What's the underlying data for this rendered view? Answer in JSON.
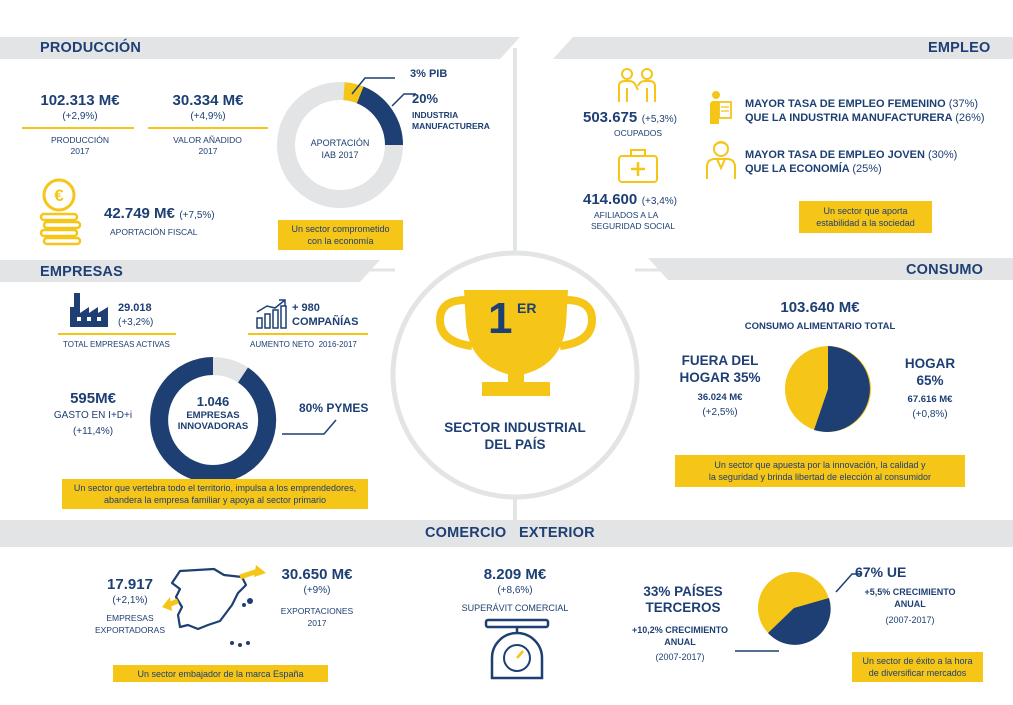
{
  "colors": {
    "navy": "#1d3f73",
    "yellow": "#f5c518",
    "grey": "#e3e4e6"
  },
  "produccion": {
    "title": "PRODUCCIÓN",
    "prod_value": "102.313 M€",
    "prod_change": "(+2,9%)",
    "prod_label": "PRODUCCIÓN",
    "prod_year": "2017",
    "va_value": "30.334 M€",
    "va_change": "(+4,9%)",
    "va_label": "VALOR AÑADIDO",
    "va_year": "2017",
    "pib": "3% PIB",
    "ind_pct": "20%",
    "ind_label1": "INDUSTRIA",
    "ind_label2": "MANUFACTURERA",
    "donut_label1": "APORTACIÓN",
    "donut_label2": "IAB 2017",
    "fiscal_value": "42.749 M€",
    "fiscal_change": "(+7,5%)",
    "fiscal_label": "APORTACIÓN FISCAL",
    "box1": "Un sector comprometido",
    "box2": "con la economía",
    "coin_icon": "euro-coins-icon"
  },
  "empleo": {
    "title": "EMPLEO",
    "ocupados_value": "503.675",
    "ocupados_change": "(+5,3%)",
    "ocupados_label": "OCUPADOS",
    "afiliados_value": "414.600",
    "afiliados_change": "(+3,4%)",
    "afiliados_label1": "AFILIADOS A LA",
    "afiliados_label2": "SEGURIDAD SOCIAL",
    "fem_line1": "MAYOR TASA DE EMPLEO FEMENINO",
    "fem_pct1": "(37%)",
    "fem_line2": "QUE LA INDUSTRIA MANUFACTURERA",
    "fem_pct2": "(26%)",
    "joven_line1": "MAYOR TASA DE EMPLEO JOVEN",
    "joven_pct1": "(30%)",
    "joven_line2": "QUE LA ECONOMÍA",
    "joven_pct2": "(25%)",
    "box1": "Un sector que aporta",
    "box2": "estabilidad a la sociedad"
  },
  "empresas": {
    "title": "EMPRESAS",
    "activas_value": "29.018",
    "activas_change": "(+3,2%)",
    "activas_label": "TOTAL EMPRESAS ACTIVAS",
    "comp_value": "+ 980",
    "comp_label": "COMPAÑÍAS",
    "comp_sub": "AUMENTO NETO  2016-2017",
    "gasto_value": "595M€",
    "gasto_label": "GASTO EN I+D+i",
    "gasto_change": "(+11,4%)",
    "innov_value": "1.046",
    "innov_label1": "EMPRESAS",
    "innov_label2": "INNOVADORAS",
    "pymes": "80% PYMES",
    "box1": "Un sector que vertebra todo el territorio, impulsa a los emprendedores,",
    "box2": "abandera la empresa familiar y apoya al sector primario"
  },
  "centro": {
    "rank": "1",
    "rank_sup": "ER",
    "label1": "SECTOR INDUSTRIAL",
    "label2": "DEL PAÍS"
  },
  "consumo": {
    "title": "CONSUMO",
    "total_value": "103.640 M€",
    "total_label": "CONSUMO ALIMENTARIO TOTAL",
    "fuera_label1": "FUERA DEL",
    "fuera_label2": "HOGAR 35%",
    "fuera_value": "36.024 M€",
    "fuera_change": "(+2,5%)",
    "hogar_label1": "HOGAR",
    "hogar_label2": "65%",
    "hogar_value": "67.616 M€",
    "hogar_change": "(+0,8%)",
    "box1": "Un sector que apuesta por la innovación, la calidad y",
    "box2": "la seguridad y brinda libertad de elección al consumidor"
  },
  "comercio": {
    "title": "COMERCIO   EXTERIOR",
    "exp_emp_value": "17.917",
    "exp_emp_change": "(+2,1%)",
    "exp_emp_label1": "EMPRESAS",
    "exp_emp_label2": "EXPORTADORAS",
    "export_value": "30.650 M€",
    "export_change": "(+9%)",
    "export_label": "EXPORTACIONES",
    "export_year": "2017",
    "box1": "Un sector embajador de la marca España",
    "superavit_value": "8.209 M€",
    "superavit_change": "(+8,6%)",
    "superavit_label": "SUPERÁVIT COMERCIAL",
    "terceros_label1": "33% PAÍSES",
    "terceros_label2": "TERCEROS",
    "terceros_growth1": "+10,2% CRECIMIENTO",
    "terceros_growth2": "ANUAL",
    "terceros_years": "(2007-2017)",
    "ue_label": "67% UE",
    "ue_growth1": "+5,5% CRECIMIENTO",
    "ue_growth2": "ANUAL",
    "ue_years": "(2007-2017)",
    "box2_1": "Un sector de éxito a la hora",
    "box2_2": "de diversificar mercados"
  },
  "chart_data": [
    {
      "type": "pie",
      "title": "",
      "categories": [
        "INDUSTRIA MANUFACTURERA",
        "PIB"
      ],
      "values": [
        20,
        3
      ]
    },
    {
      "type": "pie",
      "title": "",
      "categories": [
        "HOGAR",
        "FUERA DEL HOGAR"
      ],
      "values": [
        65,
        35
      ]
    },
    {
      "type": "pie",
      "title": "",
      "categories": [
        "UE",
        "PAÍSES TERCEROS"
      ],
      "values": [
        67,
        33
      ]
    },
    {
      "type": "pie",
      "title": "",
      "categories": [
        "PYMES"
      ],
      "values": [
        80
      ]
    }
  ]
}
